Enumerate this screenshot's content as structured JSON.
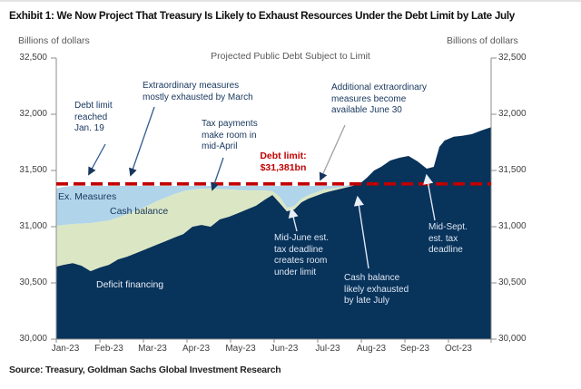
{
  "header": {
    "title": "Exhibit 1: We Now Project That Treasury Is Likely to Exhaust Resources Under the Debt Limit by Late July"
  },
  "source_line": "Source: Treasury, Goldman Sachs Global Investment Research",
  "chart_data": {
    "type": "area",
    "title": "Projected Public Debt Subject to Limit",
    "ylabel_left": "Billions of dollars",
    "ylabel_right": "Billions of dollars",
    "ylim": [
      30000,
      32500
    ],
    "xlim_months": [
      0,
      10
    ],
    "grid": false,
    "legend_position": "labels-inside-areas",
    "y_tick_labels": [
      "30,000",
      "30,500",
      "31,000",
      "31,500",
      "32,000",
      "32,500"
    ],
    "x_tick_labels": [
      "Jan-23",
      "Feb-23",
      "Mar-23",
      "Apr-23",
      "May-23",
      "Jun-23",
      "Jul-23",
      "Aug-23",
      "Sep-23",
      "Oct-23"
    ],
    "debt_limit": {
      "value": 31381,
      "text": "Debt limit:\n$31,381bn",
      "color": "#c00000"
    },
    "colors": {
      "deficit_financing": "#08335b",
      "cash_balance": "#dbe7c4",
      "ex_measures": "#b0d4e9",
      "debt_limit_line": "#c00000",
      "annotation_navy": "#17365d",
      "annotation_on_navy": "#dde7f3"
    },
    "series": [
      {
        "name": "Deficit financing",
        "role": "stacked-area-top-boundary",
        "color": "#08335b",
        "points": [
          [
            0,
            30645
          ],
          [
            0.17,
            30661
          ],
          [
            0.38,
            30677
          ],
          [
            0.58,
            30653
          ],
          [
            0.79,
            30605
          ],
          [
            1.0,
            30637
          ],
          [
            1.21,
            30661
          ],
          [
            1.42,
            30710
          ],
          [
            1.63,
            30734
          ],
          [
            1.84,
            30766
          ],
          [
            2.09,
            30806
          ],
          [
            2.3,
            30839
          ],
          [
            2.51,
            30871
          ],
          [
            2.71,
            30903
          ],
          [
            2.92,
            30935
          ],
          [
            3.13,
            31000
          ],
          [
            3.34,
            31016
          ],
          [
            3.55,
            31000
          ],
          [
            3.76,
            31065
          ],
          [
            3.97,
            31089
          ],
          [
            4.18,
            31121
          ],
          [
            4.38,
            31153
          ],
          [
            4.59,
            31186
          ],
          [
            4.8,
            31242
          ],
          [
            4.97,
            31282
          ],
          [
            5.14,
            31210
          ],
          [
            5.3,
            31137
          ],
          [
            5.47,
            31153
          ],
          [
            5.64,
            31218
          ],
          [
            5.8,
            31250
          ],
          [
            5.97,
            31274
          ],
          [
            6.14,
            31298
          ],
          [
            6.3,
            31315
          ],
          [
            6.47,
            31331
          ],
          [
            6.64,
            31347
          ],
          [
            6.81,
            31363
          ],
          [
            6.97,
            31379
          ],
          [
            7.14,
            31435
          ],
          [
            7.31,
            31500
          ],
          [
            7.47,
            31532
          ],
          [
            7.68,
            31589
          ],
          [
            7.89,
            31613
          ],
          [
            8.1,
            31629
          ],
          [
            8.31,
            31581
          ],
          [
            8.52,
            31516
          ],
          [
            8.68,
            31532
          ],
          [
            8.81,
            31710
          ],
          [
            8.93,
            31766
          ],
          [
            9.14,
            31800
          ],
          [
            9.35,
            31810
          ],
          [
            9.56,
            31823
          ],
          [
            9.77,
            31855
          ],
          [
            10,
            31885
          ]
        ]
      },
      {
        "name": "Cash balance",
        "role": "stacked-area-top-boundary",
        "color": "#dbe7c4",
        "points": [
          [
            0,
            31008
          ],
          [
            0.38,
            31024
          ],
          [
            0.79,
            31032
          ],
          [
            1.21,
            31056
          ],
          [
            1.42,
            31081
          ],
          [
            1.63,
            31113
          ],
          [
            1.84,
            31145
          ],
          [
            2.09,
            31185
          ],
          [
            2.3,
            31226
          ],
          [
            2.51,
            31258
          ],
          [
            2.71,
            31290
          ],
          [
            2.92,
            31315
          ],
          [
            3.13,
            31331
          ],
          [
            3.34,
            31339
          ],
          [
            3.55,
            31339
          ],
          [
            3.97,
            31331
          ],
          [
            4.38,
            31323
          ],
          [
            4.8,
            31323
          ],
          [
            4.97,
            31315
          ],
          [
            5.14,
            31266
          ],
          [
            5.3,
            31169
          ],
          [
            5.47,
            31185
          ],
          [
            5.64,
            31250
          ],
          [
            5.8,
            31282
          ],
          [
            5.97,
            31306
          ],
          [
            6.14,
            31331
          ],
          [
            6.3,
            31339
          ],
          [
            6.47,
            31347
          ],
          [
            6.64,
            31355
          ],
          [
            6.81,
            31367
          ],
          [
            6.97,
            31379
          ]
        ]
      },
      {
        "name": "Ex. Measures",
        "role": "stacked-area-top-boundary",
        "color": "#b0d4e9",
        "points": [
          [
            0,
            31339
          ],
          [
            0.17,
            31355
          ],
          [
            0.38,
            31363
          ],
          [
            6.47,
            31363
          ],
          [
            6.64,
            31365
          ],
          [
            6.81,
            31372
          ],
          [
            6.97,
            31379
          ]
        ]
      }
    ],
    "pinch_x": 6.97,
    "annotations": {
      "debt_limit_reached": {
        "text": "Debt limit\nreached\nJan. 19"
      },
      "extraordinary_measures": {
        "text": "Extraordinary measures\nmostly exhausted by March"
      },
      "tax_payments": {
        "text": "Tax payments\nmake room in\nmid-April"
      },
      "additional_measures": {
        "text": "Additional extraordinary\nmeasures become\navailable June 30"
      },
      "mid_june": {
        "text": "Mid-June est.\ntax deadline\ncreates room\nunder limit"
      },
      "cash_exhausted": {
        "text": "Cash balance\nlikely exhausted\nby late July"
      },
      "mid_sept": {
        "text": "Mid-Sept.\nest. tax\ndeadline"
      }
    }
  }
}
